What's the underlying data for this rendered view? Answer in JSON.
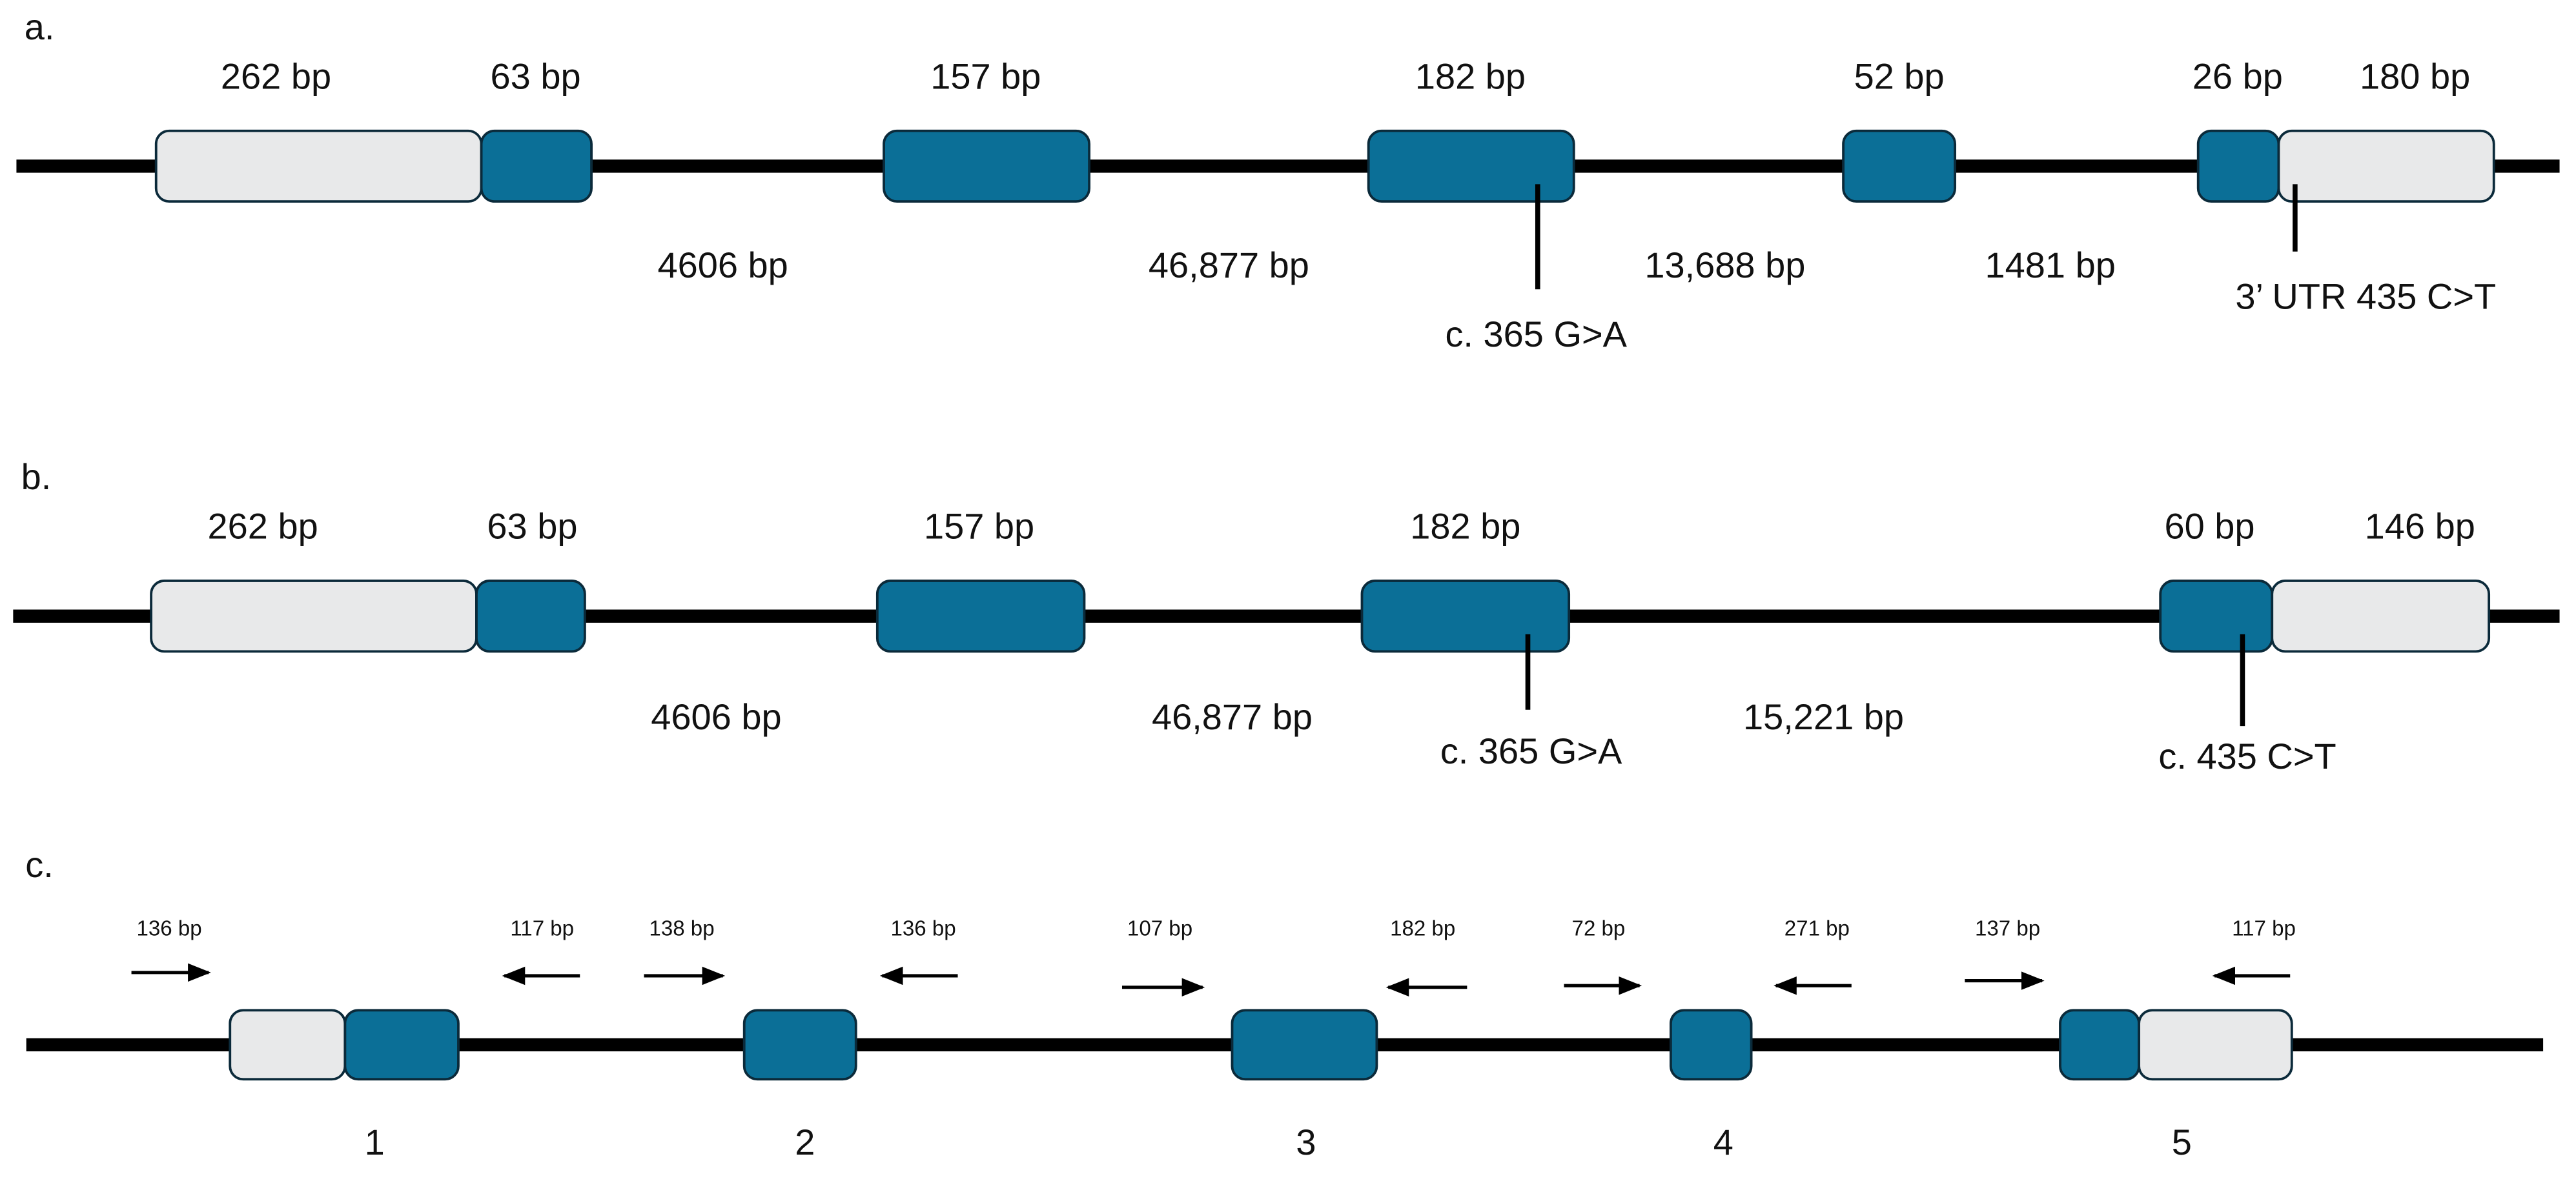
{
  "panels": [
    {
      "label": "a.",
      "exon_sizes": [
        "262 bp",
        "63 bp",
        "157 bp",
        "182 bp",
        "52 bp",
        "26 bp",
        "180 bp"
      ],
      "intron_sizes": [
        "4606 bp",
        "46,877 bp",
        "13,688 bp",
        "1481 bp"
      ],
      "variants": [
        "c. 365 G>A",
        "3’ UTR 435 C>T"
      ]
    },
    {
      "label": "b.",
      "exon_sizes": [
        "262 bp",
        "63 bp",
        "157 bp",
        "182 bp",
        "60 bp",
        "146 bp"
      ],
      "intron_sizes": [
        "4606 bp",
        "46,877 bp",
        "15,221 bp"
      ],
      "variants": [
        "c. 365 G>A",
        "c. 435 C>T"
      ]
    },
    {
      "label": "c.",
      "primers": [
        "136 bp",
        "117 bp",
        "138 bp",
        "136 bp",
        "107 bp",
        "182 bp",
        "72 bp",
        "271 bp",
        "137 bp",
        "117 bp"
      ],
      "exon_numbers": [
        "1",
        "2",
        "3",
        "4",
        "5"
      ]
    }
  ]
}
